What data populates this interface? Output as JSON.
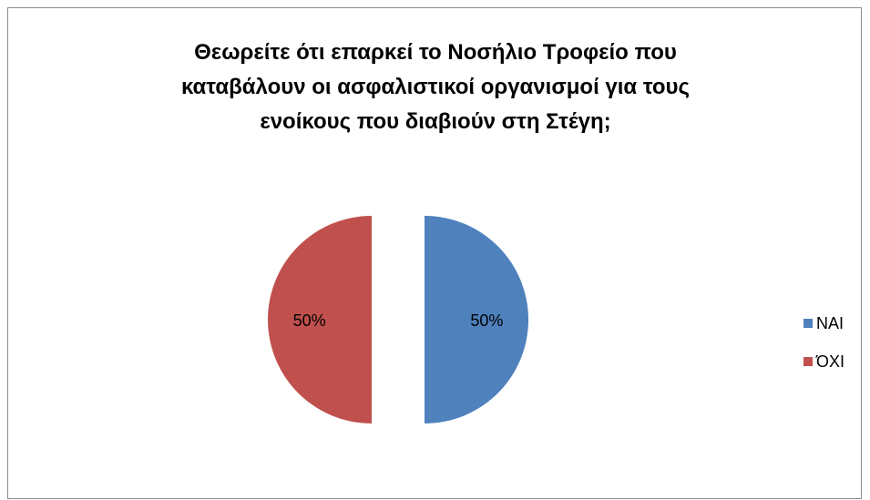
{
  "chart_data": {
    "type": "pie",
    "title_lines": [
      "Θεωρείτε ότι επαρκεί το Νοσήλιο Τροφείο που",
      "καταβάλουν οι ασφαλιστικοί οργανισμοί για τους",
      "ενοίκους που διαβιούν στη Στέγη;"
    ],
    "slices": [
      {
        "label": "ΝΑΙ",
        "value": 50,
        "display": "50%",
        "color": "#4f81bd"
      },
      {
        "label": "ΌΧΙ",
        "value": 50,
        "display": "50%",
        "color": "#c0504d"
      }
    ],
    "exploded": true,
    "legend_position": "right"
  }
}
